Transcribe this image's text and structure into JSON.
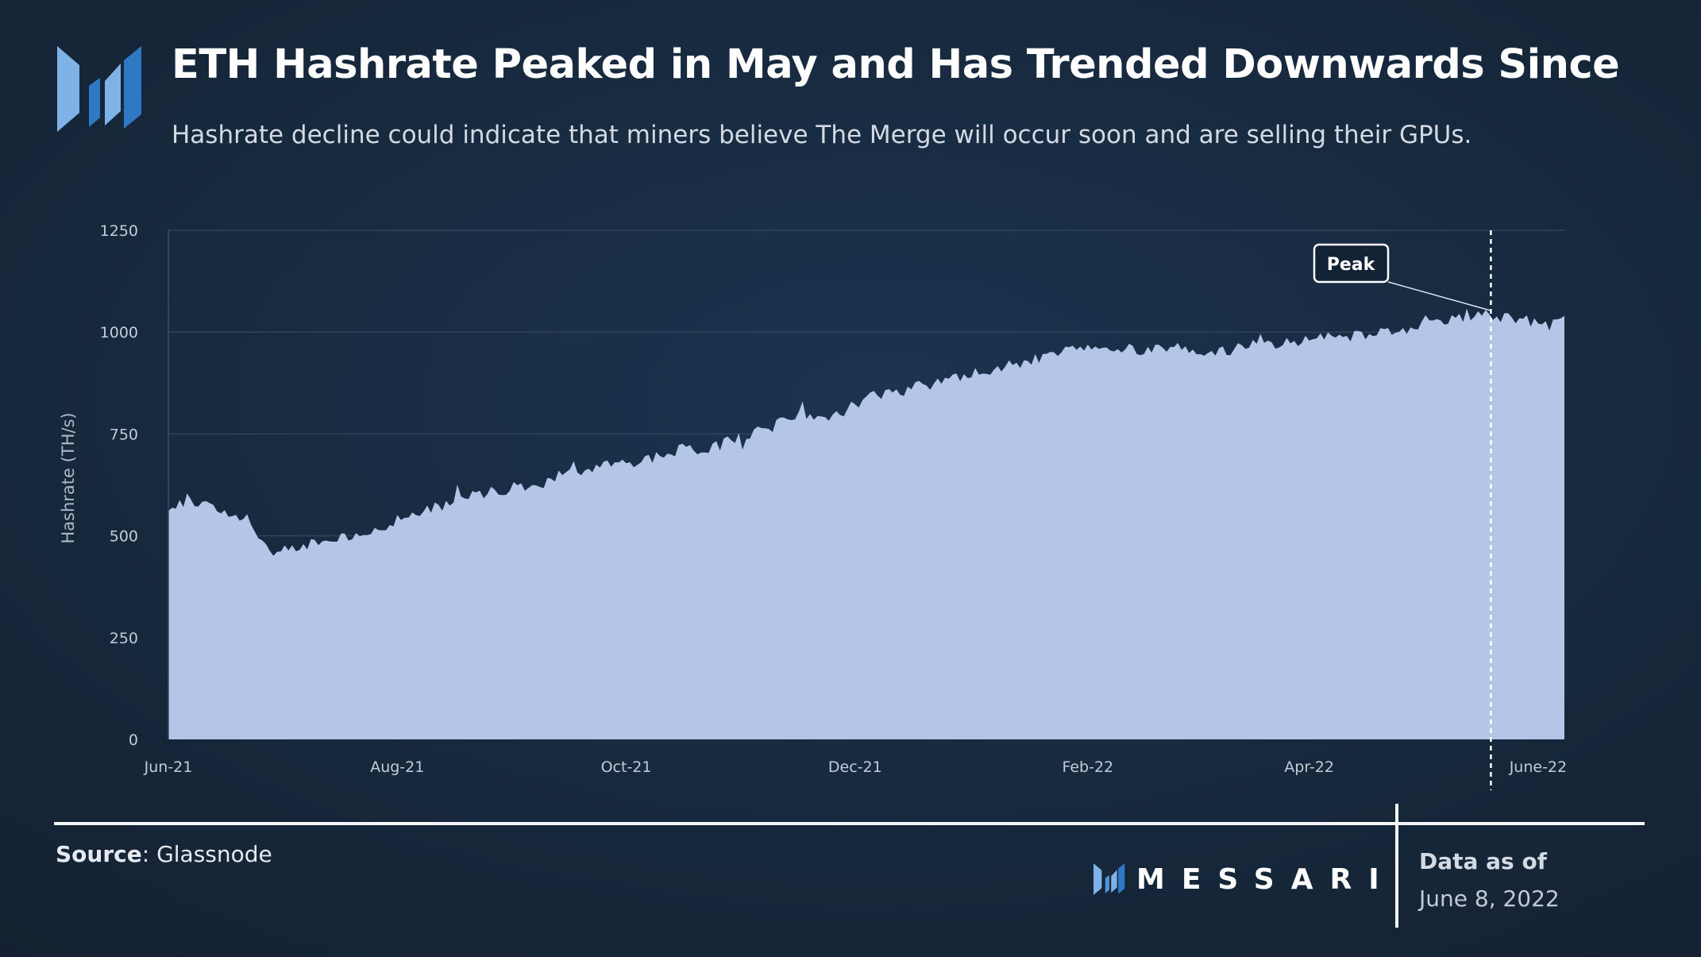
{
  "header": {
    "title": "ETH Hashrate Peaked in May and Has Trended Downwards Since",
    "subtitle": "Hashrate decline could indicate that miners believe The Merge will occur soon and are selling their GPUs.",
    "logo_icon": "messari-logo-icon"
  },
  "colors": {
    "area_fill": "#b4c6e7",
    "background": "#172a3f",
    "logo_light": "#7fb3e8",
    "logo_dark": "#2f78c4"
  },
  "footer": {
    "source_label": "Source",
    "source_value": ": Glassnode",
    "brand_name": "MESSARI",
    "data_as_of_label": "Data as of",
    "data_as_of_date": "June 8, 2022"
  },
  "chart_data": {
    "type": "area",
    "title": "",
    "xlabel": "",
    "ylabel": "Hashrate (TH/s)",
    "ylim": [
      0,
      1250
    ],
    "yticks": [
      "0",
      "250",
      "500",
      "750",
      "1000",
      "1250"
    ],
    "xticks": [
      "Jun-21",
      "Aug-21",
      "Oct-21",
      "Dec-21",
      "Feb-22",
      "Apr-22",
      "June-22"
    ],
    "grid": true,
    "series": [
      {
        "x": [
          "2021-06-01",
          "2021-06-07",
          "2021-06-15",
          "2021-06-22",
          "2021-06-28",
          "2021-07-04",
          "2021-07-10",
          "2021-07-18",
          "2021-07-26",
          "2021-08-05",
          "2021-08-15",
          "2021-08-25",
          "2021-09-05",
          "2021-09-15",
          "2021-09-25",
          "2021-10-05",
          "2021-10-15",
          "2021-10-25",
          "2021-11-05",
          "2021-11-15",
          "2021-11-25",
          "2021-12-05",
          "2021-12-15",
          "2021-12-25",
          "2022-01-05",
          "2022-01-15",
          "2022-01-25",
          "2022-02-05",
          "2022-02-15",
          "2022-02-25",
          "2022-03-05",
          "2022-03-15",
          "2022-03-25",
          "2022-04-05",
          "2022-04-15",
          "2022-04-25",
          "2022-05-05",
          "2022-05-12",
          "2022-05-20",
          "2022-05-28",
          "2022-06-03",
          "2022-06-08"
        ],
        "values": [
          575,
          590,
          560,
          540,
          460,
          470,
          485,
          495,
          510,
          555,
          580,
          605,
          625,
          655,
          675,
          685,
          710,
          720,
          760,
          800,
          790,
          840,
          860,
          880,
          905,
          925,
          955,
          965,
          955,
          960,
          945,
          965,
          975,
          985,
          990,
          1000,
          1025,
          1045,
          1040,
          1030,
          1015,
          1025
        ]
      }
    ],
    "annotations": [
      {
        "text": "Peak",
        "x": "2022-05-12",
        "y": 1045
      }
    ]
  }
}
